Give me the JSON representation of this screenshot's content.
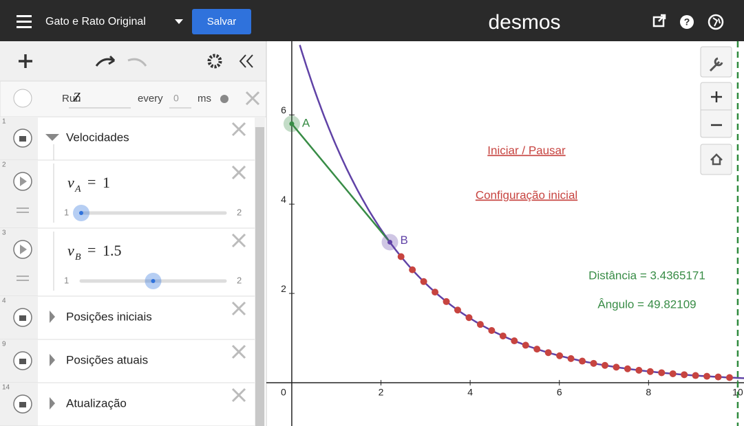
{
  "header": {
    "title": "Gato e Rato Original",
    "save": "Salvar",
    "logo": "desmos"
  },
  "ticker": {
    "run": "Run",
    "variable": "Z",
    "every": "every",
    "interval": "0",
    "unit": "ms"
  },
  "expressions": [
    {
      "index": 1,
      "kind": "folder",
      "label": "Velocidades",
      "expanded": true
    },
    {
      "index": 2,
      "kind": "slider",
      "var": "v",
      "sub": "A",
      "op": "=",
      "value": 1,
      "min": 1,
      "max": 2
    },
    {
      "index": 3,
      "kind": "slider",
      "var": "v",
      "sub": "B",
      "op": "=",
      "value": 1.5,
      "min": 1,
      "max": 2
    },
    {
      "index": 4,
      "kind": "folder",
      "label": "Posições iniciais",
      "expanded": false
    },
    {
      "index": 9,
      "kind": "folder",
      "label": "Posições atuais",
      "expanded": false
    },
    {
      "index": 14,
      "kind": "folder",
      "label": "Atualização",
      "expanded": false
    }
  ],
  "graph": {
    "xlim": [
      -0.57,
      10.14
    ],
    "ylim": [
      -0.97,
      7.65
    ],
    "xticks": [
      0,
      2,
      4,
      6,
      8,
      10
    ],
    "yticks": [
      2,
      4,
      6
    ],
    "points": [
      {
        "label": "A"
      },
      {
        "label": "B"
      }
    ],
    "links": [
      "Iniciar / Pausar",
      "Configuração inicial"
    ],
    "readouts": [
      "Distância = 3.4365171",
      "Ângulo = 49.82109"
    ]
  }
}
